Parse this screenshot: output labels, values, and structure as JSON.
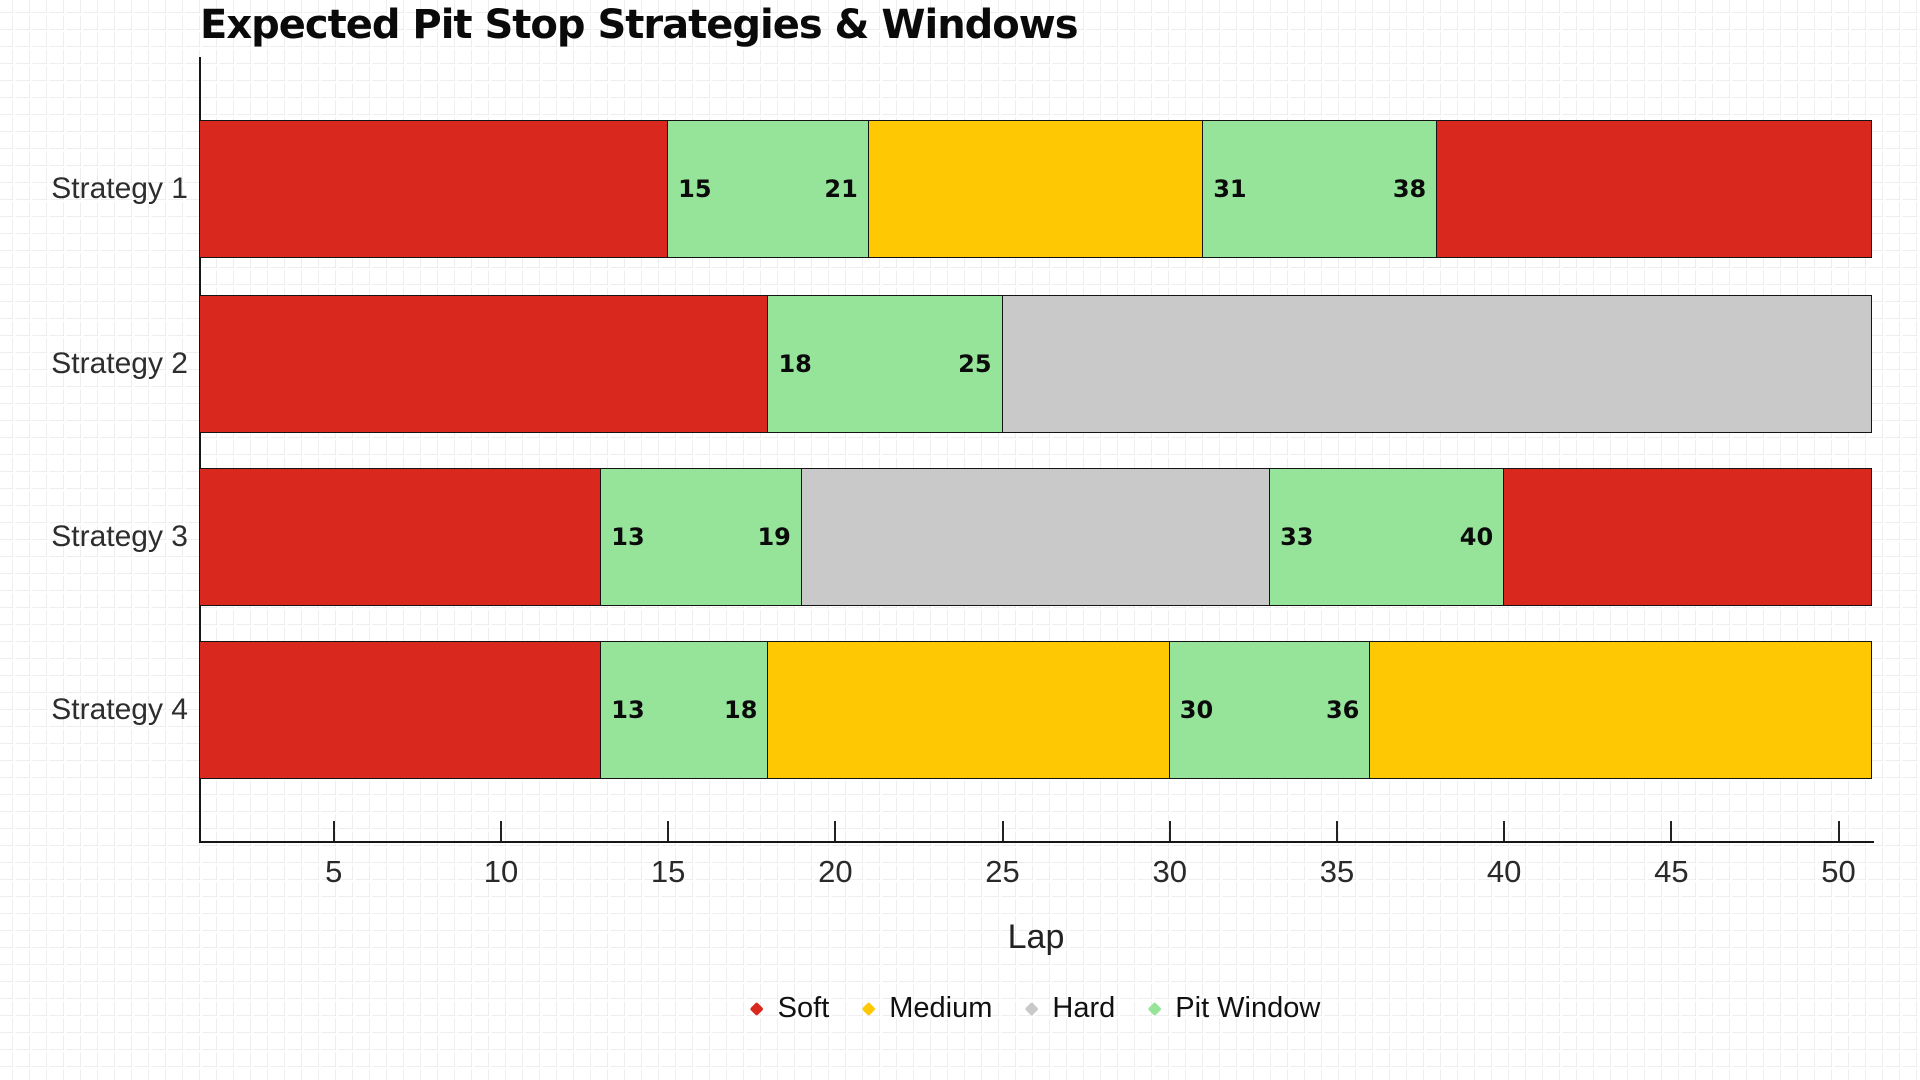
{
  "chart_data": {
    "type": "bar",
    "orientation": "horizontal-stacked-gantt",
    "title": "Expected Pit Stop Strategies & Windows",
    "xlabel": "Lap",
    "xlim": [
      1,
      51
    ],
    "xticks": [
      5,
      10,
      15,
      20,
      25,
      30,
      35,
      40,
      45,
      50
    ],
    "grid": "faint graph-paper cross pattern over whole canvas",
    "legend_position": "bottom-center",
    "categories": [
      "Strategy 1",
      "Strategy 2",
      "Strategy 3",
      "Strategy 4"
    ],
    "legend": [
      {
        "label": "Soft",
        "color": "#d9291e"
      },
      {
        "label": "Medium",
        "color": "#fec802"
      },
      {
        "label": "Hard",
        "color": "#c9c9c9"
      },
      {
        "label": "Pit Window",
        "color": "#96e49a"
      }
    ],
    "colors": {
      "Soft": "#d9291e",
      "Medium": "#fec802",
      "Hard": "#c9c9c9",
      "Pit Window": "#96e49a"
    },
    "rows": [
      {
        "category": "Strategy 1",
        "segments": [
          {
            "type": "Soft",
            "start": 1,
            "end": 15
          },
          {
            "type": "Pit Window",
            "start": 15,
            "end": 21,
            "labels": [
              "15",
              "21"
            ]
          },
          {
            "type": "Medium",
            "start": 21,
            "end": 31
          },
          {
            "type": "Pit Window",
            "start": 31,
            "end": 38,
            "labels": [
              "31",
              "38"
            ]
          },
          {
            "type": "Soft",
            "start": 38,
            "end": 51
          }
        ]
      },
      {
        "category": "Strategy 2",
        "segments": [
          {
            "type": "Soft",
            "start": 1,
            "end": 18
          },
          {
            "type": "Pit Window",
            "start": 18,
            "end": 25,
            "labels": [
              "18",
              "25"
            ]
          },
          {
            "type": "Hard",
            "start": 25,
            "end": 51
          }
        ]
      },
      {
        "category": "Strategy 3",
        "segments": [
          {
            "type": "Soft",
            "start": 1,
            "end": 13
          },
          {
            "type": "Pit Window",
            "start": 13,
            "end": 19,
            "labels": [
              "13",
              "19"
            ]
          },
          {
            "type": "Hard",
            "start": 19,
            "end": 33
          },
          {
            "type": "Pit Window",
            "start": 33,
            "end": 40,
            "labels": [
              "33",
              "40"
            ]
          },
          {
            "type": "Soft",
            "start": 40,
            "end": 51
          }
        ]
      },
      {
        "category": "Strategy 4",
        "segments": [
          {
            "type": "Soft",
            "start": 1,
            "end": 13
          },
          {
            "type": "Pit Window",
            "start": 13,
            "end": 18,
            "labels": [
              "13",
              "18"
            ]
          },
          {
            "type": "Medium",
            "start": 18,
            "end": 30
          },
          {
            "type": "Pit Window",
            "start": 30,
            "end": 36,
            "labels": [
              "30",
              "36"
            ]
          },
          {
            "type": "Medium",
            "start": 36,
            "end": 51
          }
        ]
      }
    ]
  }
}
